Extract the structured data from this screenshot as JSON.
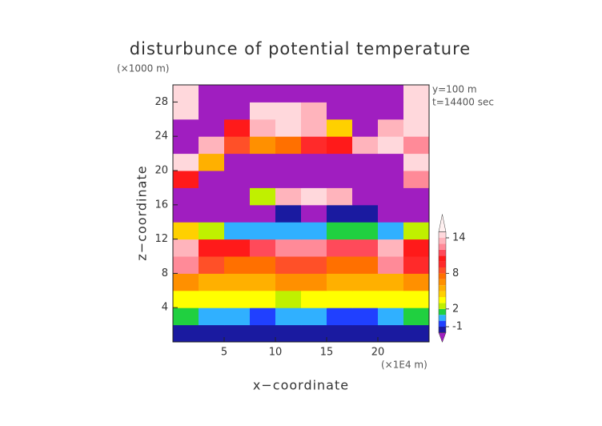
{
  "chart_data": {
    "type": "heatmap",
    "title": "disturbunce of potential temperature",
    "y_unit": "(×1000 m)",
    "x_unit": "(×1E4 m)",
    "annotations": [
      "y=100 m",
      "t=14400 sec"
    ],
    "xlabel": "x−coordinate",
    "ylabel": "z−coordinate",
    "xlim": [
      0,
      25
    ],
    "ylim": [
      0,
      30
    ],
    "xticks": [
      5,
      10,
      15,
      20
    ],
    "yticks": [
      4,
      8,
      12,
      16,
      20,
      24,
      28
    ],
    "x": [
      1.25,
      3.75,
      6.25,
      8.75,
      11.25,
      13.75,
      16.25,
      18.75,
      21.25,
      23.75
    ],
    "y": [
      1,
      3,
      5,
      7,
      9,
      11,
      13,
      15,
      17,
      19,
      21,
      23,
      25,
      27,
      29
    ],
    "z": [
      [
        -2,
        -2,
        -2,
        -2,
        -2,
        -2,
        -2,
        -2,
        -2,
        -2
      ],
      [
        1,
        0,
        0,
        -1,
        0,
        0,
        -1,
        -1,
        0,
        1
      ],
      [
        3,
        3,
        3,
        3,
        2,
        3,
        3,
        3,
        3,
        3
      ],
      [
        6,
        5,
        5,
        5,
        6,
        6,
        5,
        5,
        5,
        6
      ],
      [
        12,
        8,
        7,
        7,
        8,
        8,
        7,
        7,
        12,
        9
      ],
      [
        13,
        10,
        10,
        11,
        12,
        12,
        11,
        11,
        13,
        10
      ],
      [
        4,
        2,
        0,
        0,
        0,
        0,
        1,
        1,
        0,
        2
      ],
      [
        -3,
        -3,
        -3,
        -3,
        -2,
        -3,
        -2,
        -2,
        -3,
        -3
      ],
      [
        -3,
        -3,
        -3,
        2,
        13,
        14,
        13,
        -3,
        -3,
        -3
      ],
      [
        10,
        -3,
        -3,
        -3,
        -3,
        -3,
        -3,
        -3,
        -3,
        12
      ],
      [
        14,
        5,
        -3,
        -3,
        -3,
        -3,
        -3,
        -3,
        -3,
        14
      ],
      [
        -3,
        13,
        8,
        6,
        7,
        9,
        10,
        13,
        14,
        12
      ],
      [
        -3,
        -3,
        10,
        13,
        14,
        13,
        4,
        -3,
        13,
        14
      ],
      [
        14,
        -3,
        -3,
        14,
        14,
        13,
        -3,
        -3,
        -3,
        14
      ],
      [
        14,
        -3,
        -3,
        -3,
        -3,
        -3,
        -3,
        -3,
        -3,
        14
      ]
    ],
    "levels": [
      -2,
      -1,
      0,
      1,
      2,
      3,
      4,
      5,
      6,
      7,
      8,
      9,
      10,
      11,
      12,
      13,
      14,
      15
    ],
    "colors": [
      "#a01ec0",
      "#1a1aa0",
      "#2040ff",
      "#30b0ff",
      "#20d040",
      "#c0f000",
      "#ffff00",
      "#ffd000",
      "#ffb000",
      "#ff9000",
      "#ff7000",
      "#ff5028",
      "#ff2a2a",
      "#ff1a1a",
      "#ff4a5a",
      "#ff8a98",
      "#ffb4bc",
      "#ffd8dc",
      "#fff0f0"
    ],
    "colorbar_ticks": [
      -1,
      2,
      8,
      14
    ]
  }
}
